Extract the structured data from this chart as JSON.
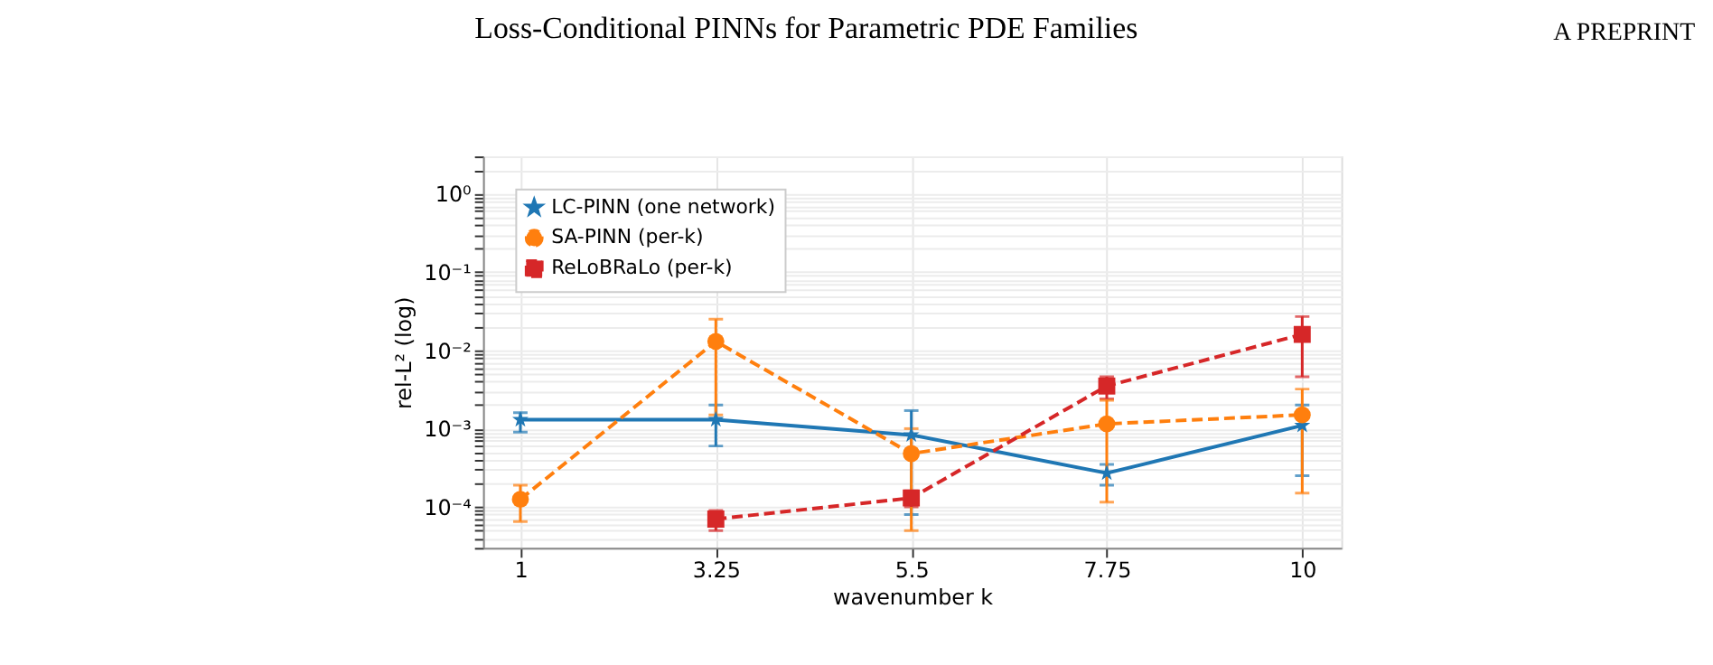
{
  "chart_data": {
    "type": "line",
    "title": "Loss-Conditional PINNs for Parametric PDE Families",
    "annotations": [
      "A PREPRINT"
    ],
    "xlabel": "wavenumber k",
    "ylabel": "rel-L² (log)",
    "x": [
      1,
      3.25,
      5.5,
      7.75,
      10
    ],
    "xlim": [
      0.57,
      10.45
    ],
    "xticks": [
      1,
      3.25,
      5.5,
      7.75,
      10
    ],
    "log": "y",
    "ylim": [
      3e-05,
      3
    ],
    "yticks": [
      {
        "value": 0.0001,
        "label": "10⁻⁴"
      },
      {
        "value": 0.001,
        "label": "10⁻³"
      },
      {
        "value": 0.01,
        "label": "10⁻²"
      },
      {
        "value": 0.1,
        "label": "10⁻¹"
      },
      {
        "value": 1,
        "label": "10⁰"
      }
    ],
    "grid": true,
    "legend": "top left",
    "series": [
      {
        "name": "LC-PINN (one network)",
        "color": "#1f77b4",
        "marker": "star",
        "line_style": "solid",
        "values": [
          0.0013,
          0.0013,
          0.00083,
          0.00027,
          0.0011
        ],
        "errors": [
          [
            0.0009,
            0.0016
          ],
          [
            0.0006,
            0.002
          ],
          [
            8e-05,
            0.0017
          ],
          [
            0.00019,
            0.00035
          ],
          [
            0.00025,
            0.002
          ]
        ]
      },
      {
        "name": "SA-PINN (per-k)",
        "color": "#ff7f0e",
        "marker": "circle",
        "line_style": "dashed",
        "values": [
          0.000125,
          0.013,
          0.00048,
          0.00115,
          0.0015
        ],
        "errors": [
          [
            6.5e-05,
            0.00019
          ],
          [
            0.0015,
            0.025
          ],
          [
            5e-05,
            0.001
          ],
          [
            0.000115,
            0.0023
          ],
          [
            0.00015,
            0.0032
          ]
        ]
      },
      {
        "name": "ReLoBRaLo (per-k)",
        "color": "#d62728",
        "marker": "square",
        "line_style": "dashed",
        "values": [
          null,
          7e-05,
          0.00013,
          0.0035,
          0.016
        ],
        "errors": [
          null,
          [
            5e-05,
            9e-05
          ],
          [
            0.0001,
            0.00016
          ],
          [
            0.0024,
            0.0046
          ],
          [
            0.0046,
            0.027
          ]
        ]
      }
    ]
  }
}
